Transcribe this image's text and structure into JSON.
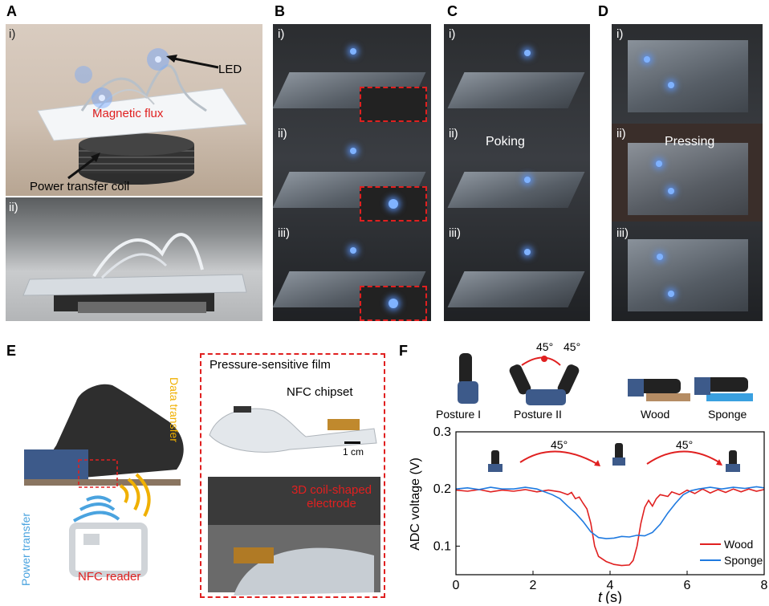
{
  "panels": {
    "A": {
      "label": "A",
      "sub_i": "i)",
      "sub_ii": "ii)",
      "led": "LED",
      "flux": "Magnetic flux",
      "coil": "Power transfer coil"
    },
    "B": {
      "label": "B",
      "subs": [
        "i)",
        "ii)",
        "iii)"
      ]
    },
    "C": {
      "label": "C",
      "subs": [
        "i)",
        "ii)",
        "iii)"
      ],
      "action": "Poking"
    },
    "D": {
      "label": "D",
      "subs": [
        "i)",
        "ii)",
        "iii)"
      ],
      "action": "Pressing"
    },
    "E": {
      "label": "E",
      "power": "Power transfer",
      "data": "Data transfer",
      "reader": "NFC reader",
      "film": "Pressure-sensitive film",
      "chipset": "NFC chipset",
      "scale": "1 cm",
      "electrode": "3D coil-shaped electrode"
    },
    "F": {
      "label": "F",
      "posture1": "Posture I",
      "posture2": "Posture II",
      "wood": "Wood",
      "sponge": "Sponge",
      "angle_left": "45°",
      "angle_right": "45°",
      "arrow_left": "45°",
      "arrow_right": "45°"
    }
  },
  "colors": {
    "red": "#e02020",
    "blue": "#1f7ae0",
    "orange": "#f0b000",
    "light_blue": "#4aa3df"
  },
  "chart_data": {
    "type": "line",
    "xlabel": "t (s)",
    "xlabel_var": "t",
    "xlabel_unit": "(s)",
    "ylabel": "ADC voltage (V)",
    "xlim": [
      0,
      8
    ],
    "ylim": [
      0.05,
      0.3
    ],
    "xticks": [
      "0",
      "2",
      "4",
      "6",
      "8"
    ],
    "yticks": [
      "0.1",
      "0.2",
      "0.3"
    ],
    "legend_placement": "bottom-right",
    "series": [
      {
        "name": "Wood",
        "color": "#e02020",
        "points": [
          [
            0,
            0.198
          ],
          [
            0.3,
            0.196
          ],
          [
            0.6,
            0.199
          ],
          [
            0.9,
            0.195
          ],
          [
            1.2,
            0.198
          ],
          [
            1.5,
            0.196
          ],
          [
            1.8,
            0.199
          ],
          [
            2.1,
            0.195
          ],
          [
            2.4,
            0.198
          ],
          [
            2.7,
            0.195
          ],
          [
            2.9,
            0.19
          ],
          [
            3.0,
            0.194
          ],
          [
            3.1,
            0.183
          ],
          [
            3.2,
            0.186
          ],
          [
            3.3,
            0.175
          ],
          [
            3.4,
            0.165
          ],
          [
            3.5,
            0.14
          ],
          [
            3.6,
            0.1
          ],
          [
            3.7,
            0.082
          ],
          [
            3.9,
            0.073
          ],
          [
            4.1,
            0.068
          ],
          [
            4.3,
            0.066
          ],
          [
            4.5,
            0.067
          ],
          [
            4.6,
            0.075
          ],
          [
            4.7,
            0.1
          ],
          [
            4.8,
            0.14
          ],
          [
            4.9,
            0.168
          ],
          [
            5.0,
            0.18
          ],
          [
            5.1,
            0.17
          ],
          [
            5.2,
            0.183
          ],
          [
            5.3,
            0.19
          ],
          [
            5.5,
            0.187
          ],
          [
            5.6,
            0.195
          ],
          [
            5.8,
            0.19
          ],
          [
            6.0,
            0.198
          ],
          [
            6.2,
            0.192
          ],
          [
            6.4,
            0.2
          ],
          [
            6.6,
            0.193
          ],
          [
            6.8,
            0.199
          ],
          [
            7.0,
            0.194
          ],
          [
            7.2,
            0.2
          ],
          [
            7.4,
            0.195
          ],
          [
            7.6,
            0.2
          ],
          [
            7.8,
            0.196
          ],
          [
            8.0,
            0.199
          ]
        ]
      },
      {
        "name": "Sponge",
        "color": "#1f7ae0",
        "points": [
          [
            0,
            0.2
          ],
          [
            0.3,
            0.202
          ],
          [
            0.6,
            0.199
          ],
          [
            0.9,
            0.203
          ],
          [
            1.2,
            0.2
          ],
          [
            1.5,
            0.2
          ],
          [
            1.8,
            0.203
          ],
          [
            2.1,
            0.2
          ],
          [
            2.3,
            0.195
          ],
          [
            2.5,
            0.19
          ],
          [
            2.7,
            0.183
          ],
          [
            2.9,
            0.17
          ],
          [
            3.1,
            0.158
          ],
          [
            3.3,
            0.143
          ],
          [
            3.5,
            0.125
          ],
          [
            3.7,
            0.115
          ],
          [
            3.9,
            0.113
          ],
          [
            4.1,
            0.114
          ],
          [
            4.3,
            0.117
          ],
          [
            4.5,
            0.116
          ],
          [
            4.7,
            0.119
          ],
          [
            4.9,
            0.118
          ],
          [
            5.1,
            0.124
          ],
          [
            5.3,
            0.138
          ],
          [
            5.5,
            0.158
          ],
          [
            5.7,
            0.175
          ],
          [
            5.9,
            0.19
          ],
          [
            6.1,
            0.197
          ],
          [
            6.3,
            0.2
          ],
          [
            6.6,
            0.203
          ],
          [
            6.9,
            0.2
          ],
          [
            7.2,
            0.203
          ],
          [
            7.5,
            0.201
          ],
          [
            7.8,
            0.204
          ],
          [
            8.0,
            0.202
          ]
        ]
      }
    ]
  }
}
